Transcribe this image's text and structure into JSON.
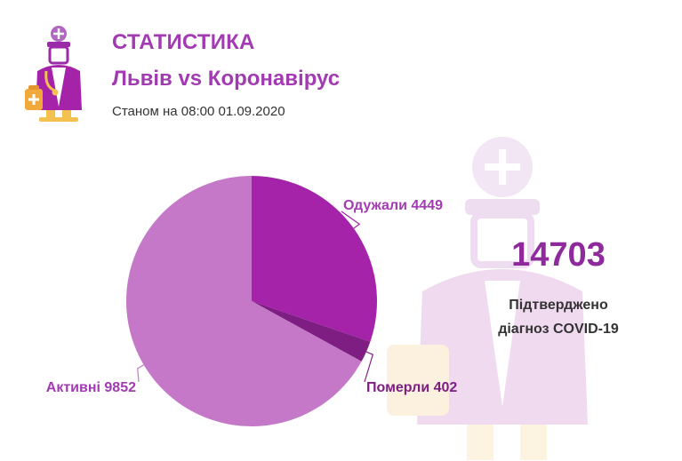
{
  "header": {
    "title": "СТАТИСТИКА",
    "subtitle": "Львів vs Коронавірус",
    "as_of": "Станом на 08:00 01.09.2020"
  },
  "summary": {
    "total": "14703",
    "caption_line1": "Підтверджено",
    "caption_line2": "діагноз COVID-19"
  },
  "icons": {
    "logo": "doctor-icon",
    "watermark": "doctor-icon"
  },
  "colors": {
    "accent": "#a23bb2",
    "recovered": "#a523a9",
    "died": "#7e1d82",
    "active": "#c478c7",
    "label": "#a23bb2",
    "total": "#8e2a9c"
  },
  "chart_data": {
    "type": "pie",
    "slices": [
      {
        "label": "Одужали",
        "value": 4449,
        "text": "Одужали 4449",
        "color": "#a523a9"
      },
      {
        "label": "Померли",
        "value": 402,
        "text": "Померли 402",
        "color": "#7e1d82"
      },
      {
        "label": "Активні",
        "value": 9852,
        "text": "Активні 9852",
        "color": "#c478c7"
      }
    ]
  }
}
